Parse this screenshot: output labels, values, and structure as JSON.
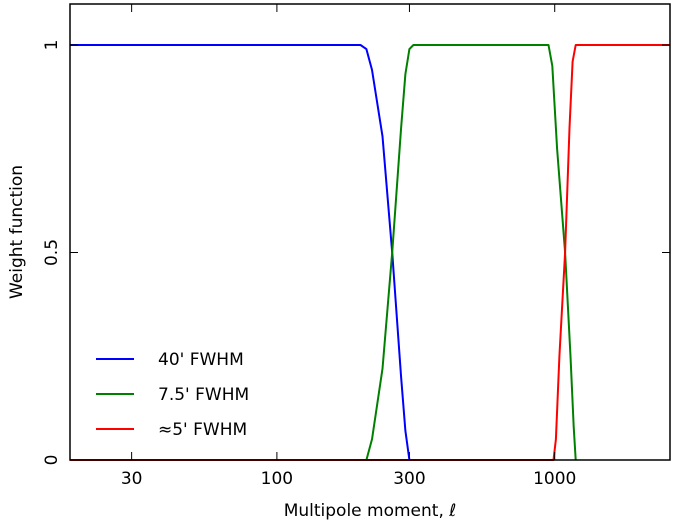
{
  "chart_data": {
    "type": "line",
    "xlabel": "Multipole moment, ℓ",
    "ylabel": "Weight function",
    "xscale": "log",
    "xlim": [
      18,
      2600
    ],
    "ylim": [
      0,
      1
    ],
    "xticks": [
      {
        "value": 30,
        "label": "30"
      },
      {
        "value": 100,
        "label": "100"
      },
      {
        "value": 300,
        "label": "300"
      },
      {
        "value": 1000,
        "label": "1000"
      }
    ],
    "yticks": [
      {
        "value": 0,
        "label": "0"
      },
      {
        "value": 0.5,
        "label": "0.5"
      },
      {
        "value": 1,
        "label": "1"
      }
    ],
    "grid": false,
    "legend_position": "lower-left",
    "series": [
      {
        "name": "40' FWHM",
        "color": "#0000ff",
        "points": [
          [
            18,
            1
          ],
          [
            100,
            1
          ],
          [
            200,
            1
          ],
          [
            210,
            0.99
          ],
          [
            220,
            0.94
          ],
          [
            240,
            0.78
          ],
          [
            260,
            0.5
          ],
          [
            280,
            0.2
          ],
          [
            290,
            0.07
          ],
          [
            300,
            0
          ]
        ]
      },
      {
        "name": "7.5' FWHM",
        "color": "#008000",
        "points": [
          [
            18,
            0
          ],
          [
            100,
            0
          ],
          [
            210,
            0
          ],
          [
            220,
            0.05
          ],
          [
            240,
            0.22
          ],
          [
            260,
            0.5
          ],
          [
            280,
            0.8
          ],
          [
            290,
            0.93
          ],
          [
            300,
            0.99
          ],
          [
            310,
            1
          ],
          [
            950,
            1
          ],
          [
            980,
            0.95
          ],
          [
            1020,
            0.75
          ],
          [
            1090,
            0.5
          ],
          [
            1140,
            0.25
          ],
          [
            1170,
            0.08
          ],
          [
            1190,
            0
          ]
        ]
      },
      {
        "name": "≈5' FWHM",
        "color": "#ff0000",
        "points": [
          [
            18,
            0
          ],
          [
            990,
            0
          ],
          [
            1010,
            0.05
          ],
          [
            1040,
            0.25
          ],
          [
            1090,
            0.5
          ],
          [
            1130,
            0.8
          ],
          [
            1160,
            0.96
          ],
          [
            1190,
            1
          ],
          [
            2600,
            1
          ]
        ]
      }
    ]
  }
}
